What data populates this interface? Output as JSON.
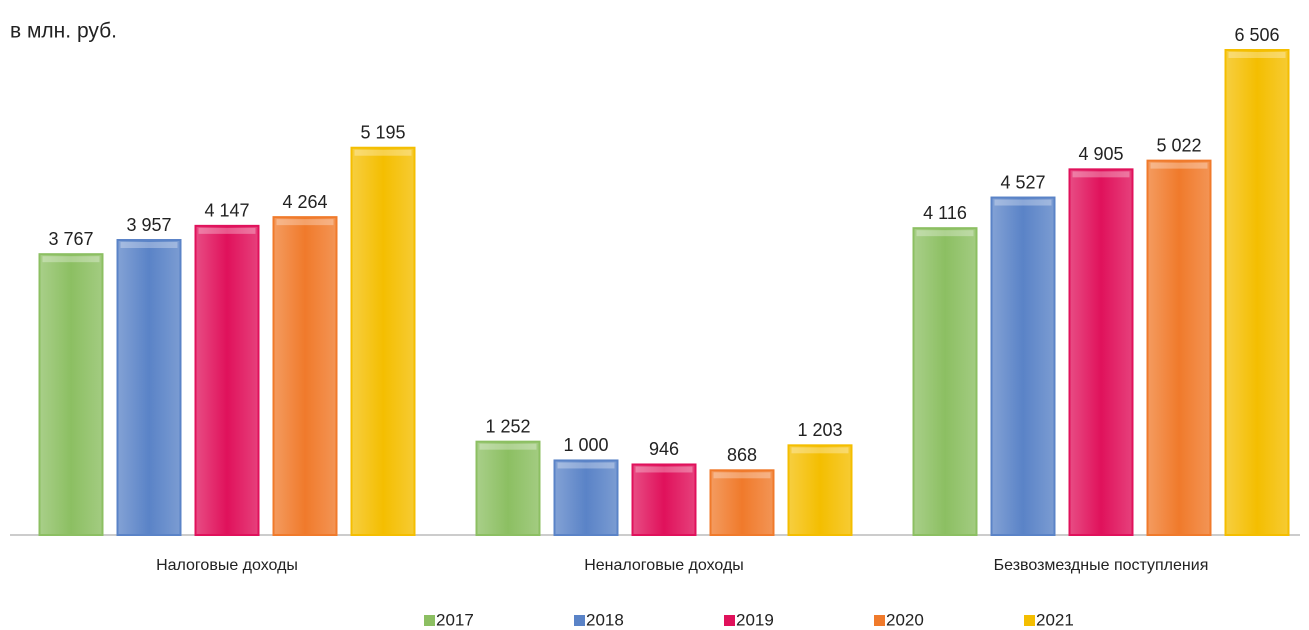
{
  "chart_data": {
    "type": "bar",
    "subtitle": "в млн. руб.",
    "categories": [
      "Налоговые доходы",
      "Неналоговые доходы",
      "Безвозмездные поступления"
    ],
    "series": [
      {
        "name": "2017",
        "color": "#8cbf62",
        "values": [
          3767,
          1252,
          4116
        ],
        "value_labels": [
          "3 767",
          "1 252",
          "4 116"
        ]
      },
      {
        "name": "2018",
        "color": "#5a83c7",
        "values": [
          3957,
          1000,
          4527
        ],
        "value_labels": [
          "3 957",
          "1 000",
          "4 527"
        ]
      },
      {
        "name": "2019",
        "color": "#e0115b",
        "values": [
          4147,
          946,
          4905
        ],
        "value_labels": [
          "4 147",
          "946",
          "4 905"
        ]
      },
      {
        "name": "2020",
        "color": "#f07a2b",
        "values": [
          4264,
          868,
          5022
        ],
        "value_labels": [
          "4 264",
          "868",
          "5 022"
        ]
      },
      {
        "name": "2021",
        "color": "#f4be00",
        "values": [
          5195,
          1203,
          6506
        ],
        "value_labels": [
          "5 195",
          "1 203",
          "6 506"
        ]
      }
    ],
    "legend": "bottom"
  }
}
